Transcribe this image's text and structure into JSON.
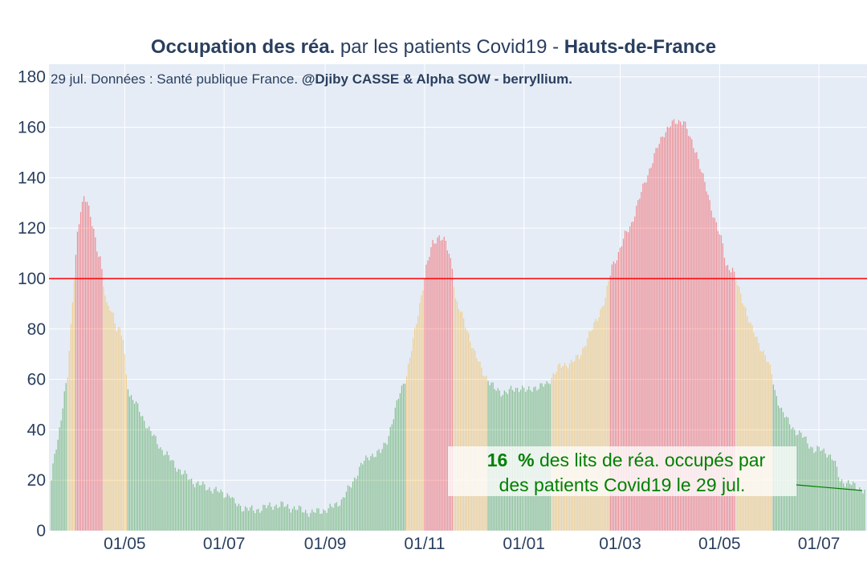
{
  "chart_data": {
    "type": "bar",
    "title": {
      "part1_bold": "Occupation des réa.",
      "part2": " par les patients Covid19 - ",
      "part3_bold": "Hauts-de-France"
    },
    "subtitle": {
      "text": "29 jul. Données : Santé publique France. ",
      "credit_bold": "@Djiby CASSE & Alpha SOW - berryllium."
    },
    "ylim": [
      0,
      185
    ],
    "yticks": [
      0,
      20,
      40,
      60,
      80,
      100,
      120,
      140,
      160,
      180
    ],
    "x_tick_labels": [
      "01/05",
      "01/07",
      "01/09",
      "01/11",
      "01/01",
      "01/03",
      "01/05",
      "01/07"
    ],
    "x_tick_days": [
      45,
      106,
      168,
      229,
      290,
      349,
      410,
      471
    ],
    "day0_date": "2020-03-17",
    "num_days": 500,
    "reference_line": {
      "y": 100,
      "color": "#ff0000"
    },
    "colors": {
      "green": "#008000",
      "orange": "#ffa500",
      "red": "#ff0000",
      "bar_opacity": 0.4
    },
    "thresholds": {
      "orange_above": 60,
      "red_above": 100
    },
    "keypoints": [
      [
        0,
        20
      ],
      [
        2,
        30
      ],
      [
        4,
        35
      ],
      [
        6,
        45
      ],
      [
        8,
        55
      ],
      [
        10,
        62
      ],
      [
        12,
        80
      ],
      [
        14,
        100
      ],
      [
        16,
        118
      ],
      [
        18,
        128
      ],
      [
        20,
        132
      ],
      [
        22,
        130
      ],
      [
        24,
        124
      ],
      [
        26,
        120
      ],
      [
        28,
        112
      ],
      [
        30,
        108
      ],
      [
        32,
        97
      ],
      [
        34,
        89
      ],
      [
        36,
        89
      ],
      [
        38,
        86
      ],
      [
        40,
        80
      ],
      [
        42,
        79
      ],
      [
        44,
        76
      ],
      [
        46,
        62
      ],
      [
        48,
        54
      ],
      [
        52,
        50
      ],
      [
        56,
        45
      ],
      [
        60,
        40
      ],
      [
        64,
        36
      ],
      [
        68,
        32
      ],
      [
        72,
        29
      ],
      [
        76,
        26
      ],
      [
        80,
        23
      ],
      [
        84,
        21
      ],
      [
        88,
        19
      ],
      [
        92,
        18
      ],
      [
        96,
        17
      ],
      [
        100,
        16
      ],
      [
        104,
        15
      ],
      [
        110,
        14
      ],
      [
        112,
        11
      ],
      [
        118,
        9
      ],
      [
        124,
        8
      ],
      [
        130,
        9
      ],
      [
        136,
        10
      ],
      [
        142,
        10
      ],
      [
        148,
        9
      ],
      [
        154,
        8
      ],
      [
        160,
        7
      ],
      [
        166,
        8
      ],
      [
        172,
        9
      ],
      [
        178,
        12
      ],
      [
        184,
        18
      ],
      [
        190,
        26
      ],
      [
        196,
        30
      ],
      [
        202,
        31
      ],
      [
        206,
        36
      ],
      [
        210,
        45
      ],
      [
        214,
        55
      ],
      [
        218,
        62
      ],
      [
        222,
        75
      ],
      [
        226,
        90
      ],
      [
        230,
        104
      ],
      [
        234,
        114
      ],
      [
        238,
        117
      ],
      [
        242,
        114
      ],
      [
        246,
        105
      ],
      [
        248,
        92
      ],
      [
        252,
        85
      ],
      [
        256,
        78
      ],
      [
        260,
        70
      ],
      [
        264,
        64
      ],
      [
        268,
        60
      ],
      [
        272,
        56
      ],
      [
        276,
        55
      ],
      [
        280,
        55
      ],
      [
        284,
        56
      ],
      [
        288,
        57
      ],
      [
        292,
        55
      ],
      [
        296,
        57
      ],
      [
        300,
        57
      ],
      [
        304,
        58
      ],
      [
        308,
        62
      ],
      [
        312,
        65
      ],
      [
        316,
        66
      ],
      [
        320,
        67
      ],
      [
        324,
        69
      ],
      [
        328,
        75
      ],
      [
        332,
        80
      ],
      [
        336,
        86
      ],
      [
        340,
        92
      ],
      [
        344,
        105
      ],
      [
        348,
        110
      ],
      [
        352,
        117
      ],
      [
        356,
        122
      ],
      [
        360,
        130
      ],
      [
        364,
        138
      ],
      [
        368,
        145
      ],
      [
        372,
        152
      ],
      [
        376,
        158
      ],
      [
        380,
        161
      ],
      [
        384,
        162
      ],
      [
        388,
        163
      ],
      [
        392,
        155
      ],
      [
        396,
        150
      ],
      [
        400,
        140
      ],
      [
        404,
        130
      ],
      [
        408,
        122
      ],
      [
        412,
        113
      ],
      [
        414,
        105
      ],
      [
        418,
        104
      ],
      [
        422,
        95
      ],
      [
        426,
        88
      ],
      [
        430,
        80
      ],
      [
        434,
        74
      ],
      [
        438,
        70
      ],
      [
        442,
        62
      ],
      [
        444,
        55
      ],
      [
        448,
        48
      ],
      [
        452,
        43
      ],
      [
        456,
        40
      ],
      [
        460,
        38
      ],
      [
        464,
        35
      ],
      [
        468,
        32
      ],
      [
        472,
        32
      ],
      [
        476,
        31
      ],
      [
        480,
        28
      ],
      [
        484,
        20
      ],
      [
        488,
        19
      ],
      [
        492,
        18
      ],
      [
        499,
        16
      ]
    ],
    "annotation": {
      "value_bold": "16  %",
      "line1_rest": " des lits de réa. occupés par",
      "line2": "des patients Covid19 le 29 jul."
    }
  }
}
